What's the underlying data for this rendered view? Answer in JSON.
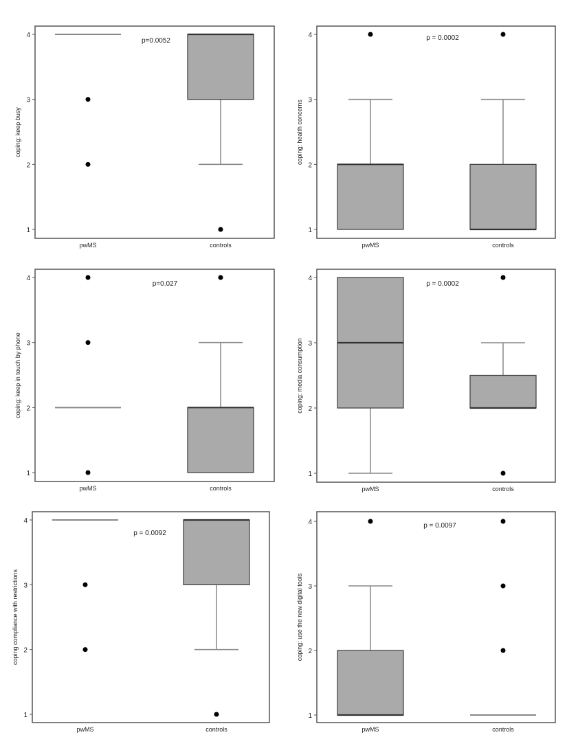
{
  "chart_data": [
    {
      "type": "box",
      "ylabel": "coping: keep busy",
      "annotation": "p=0.0052",
      "categories": [
        "pwMS",
        "controls"
      ],
      "yticks": [
        1,
        2,
        3,
        4
      ],
      "ylim": [
        1,
        4
      ],
      "grid": false,
      "box_color": "#aaaaaa",
      "groups": [
        {
          "name": "pwMS",
          "whisker_low": 4,
          "q1": 4,
          "median": 4,
          "q3": 4,
          "whisker_high": 4,
          "outliers": [
            3,
            2
          ]
        },
        {
          "name": "controls",
          "whisker_low": 2,
          "q1": 3,
          "median": 4,
          "q3": 4,
          "whisker_high": 4,
          "outliers": [
            1
          ]
        }
      ]
    },
    {
      "type": "box",
      "ylabel": "coping: health concerns",
      "annotation": "p = 0.0002",
      "categories": [
        "pwMS",
        "controls"
      ],
      "yticks": [
        1,
        2,
        3,
        4
      ],
      "ylim": [
        1,
        4
      ],
      "grid": false,
      "box_color": "#aaaaaa",
      "groups": [
        {
          "name": "pwMS",
          "whisker_low": 1,
          "q1": 1,
          "median": 2,
          "q3": 2,
          "whisker_high": 3,
          "outliers": [
            4
          ]
        },
        {
          "name": "controls",
          "whisker_low": 1,
          "q1": 1,
          "median": 1,
          "q3": 2,
          "whisker_high": 3,
          "outliers": [
            4
          ]
        }
      ]
    },
    {
      "type": "box",
      "ylabel": "coping: keep in touch by phone",
      "annotation": "p=0.027",
      "categories": [
        "pwMS",
        "controls"
      ],
      "yticks": [
        1,
        2,
        3,
        4
      ],
      "ylim": [
        1,
        4
      ],
      "grid": false,
      "box_color": "#aaaaaa",
      "groups": [
        {
          "name": "pwMS",
          "whisker_low": 2,
          "q1": 2,
          "median": 2,
          "q3": 2,
          "whisker_high": 2,
          "outliers": [
            4,
            3,
            1
          ]
        },
        {
          "name": "controls",
          "whisker_low": 1,
          "q1": 1,
          "median": 2,
          "q3": 2,
          "whisker_high": 3,
          "outliers": [
            4
          ]
        }
      ]
    },
    {
      "type": "box",
      "ylabel": "coping: media consumption",
      "annotation": "p = 0.0002",
      "categories": [
        "pwMS",
        "controls"
      ],
      "yticks": [
        1,
        2,
        3,
        4
      ],
      "ylim": [
        1,
        4
      ],
      "grid": false,
      "box_color": "#aaaaaa",
      "groups": [
        {
          "name": "pwMS",
          "whisker_low": 1,
          "q1": 2,
          "median": 3,
          "q3": 4,
          "whisker_high": 4,
          "outliers": []
        },
        {
          "name": "controls",
          "whisker_low": 2,
          "q1": 2,
          "median": 2,
          "q3": 2.5,
          "whisker_high": 3,
          "outliers": [
            4,
            1
          ]
        }
      ]
    },
    {
      "type": "box",
      "ylabel": "coping compliance with restrictions",
      "annotation": "p = 0.0092",
      "categories": [
        "pwMS",
        "controls"
      ],
      "yticks": [
        1,
        2,
        3,
        4
      ],
      "ylim": [
        1,
        4
      ],
      "grid": false,
      "box_color": "#aaaaaa",
      "groups": [
        {
          "name": "pwMS",
          "whisker_low": 4,
          "q1": 4,
          "median": 4,
          "q3": 4,
          "whisker_high": 4,
          "outliers": [
            3,
            2
          ]
        },
        {
          "name": "controls",
          "whisker_low": 2,
          "q1": 3,
          "median": 4,
          "q3": 4,
          "whisker_high": 4,
          "outliers": [
            1
          ]
        }
      ]
    },
    {
      "type": "box",
      "ylabel": "coping: use the new digital tools",
      "annotation": "p = 0.0097",
      "categories": [
        "pwMS",
        "controls"
      ],
      "yticks": [
        1,
        2,
        3,
        4
      ],
      "ylim": [
        1,
        4
      ],
      "grid": false,
      "box_color": "#aaaaaa",
      "groups": [
        {
          "name": "pwMS",
          "whisker_low": 1,
          "q1": 1,
          "median": 1,
          "q3": 2,
          "whisker_high": 3,
          "outliers": [
            4
          ]
        },
        {
          "name": "controls",
          "whisker_low": 1,
          "q1": 1,
          "median": 1,
          "q3": 1,
          "whisker_high": 1,
          "outliers": [
            4,
            3,
            2
          ]
        }
      ]
    }
  ]
}
